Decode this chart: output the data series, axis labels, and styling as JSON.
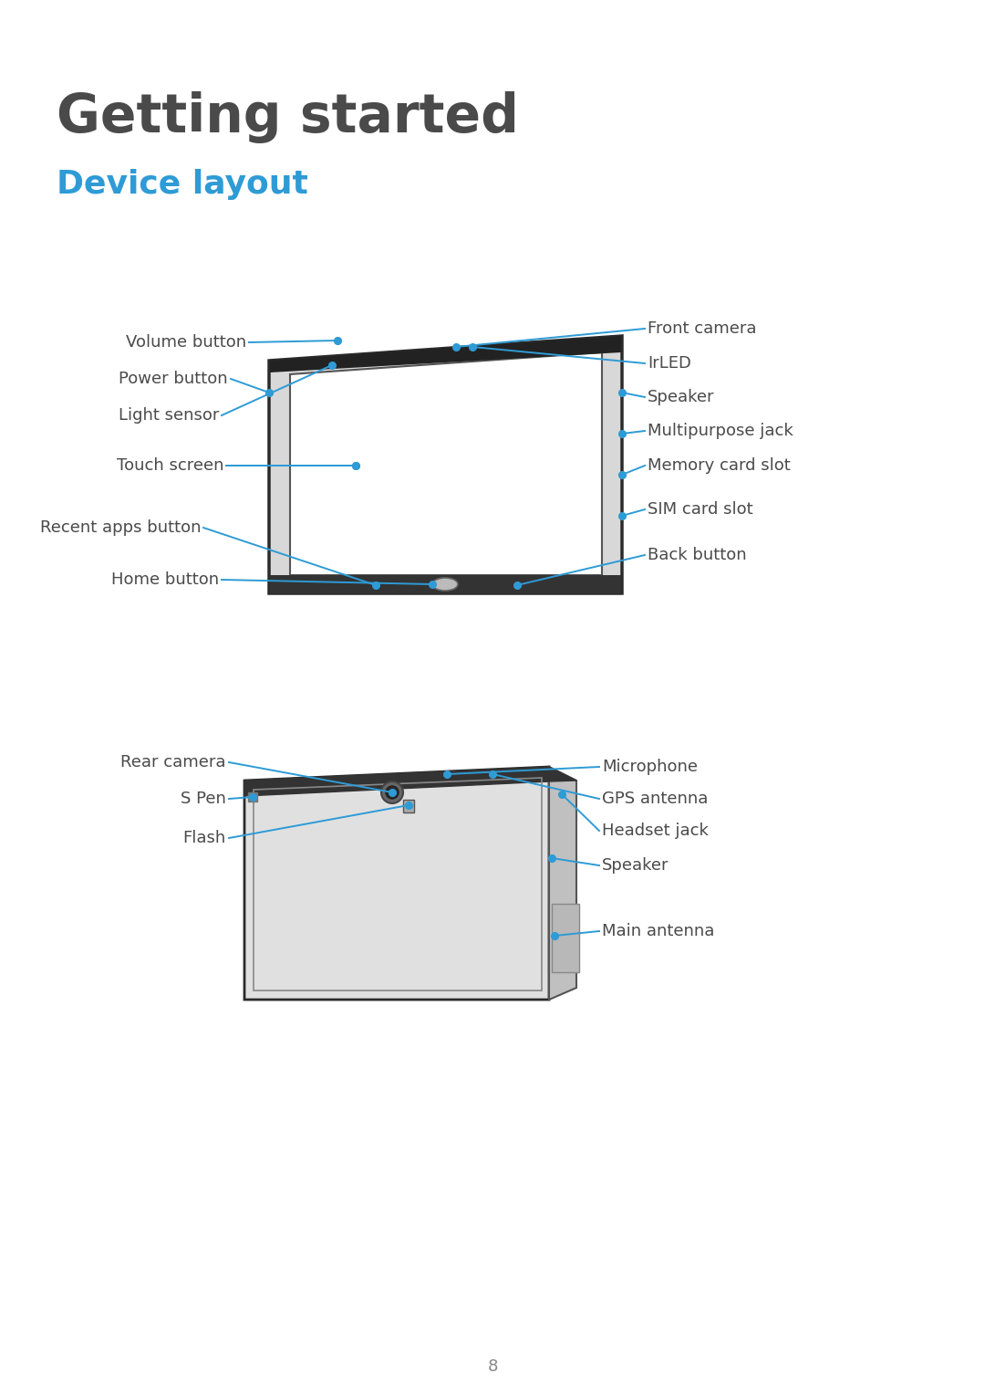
{
  "title": "Getting started",
  "subtitle": "Device layout",
  "title_color": "#4a4a4a",
  "subtitle_color": "#2e9bd6",
  "line_color": "#2e9bd6",
  "dot_color": "#2e9bd6",
  "label_color": "#4a4a4a",
  "bg_color": "#ffffff",
  "page_number": "8"
}
